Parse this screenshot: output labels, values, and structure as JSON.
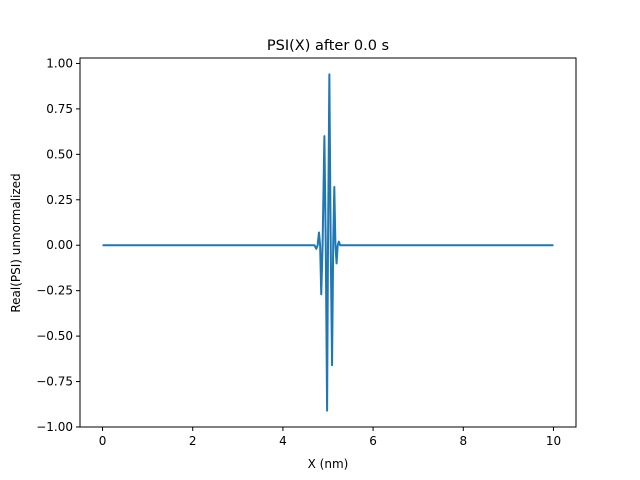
{
  "chart_data": {
    "type": "line",
    "title": "PSI(X) after 0.0 s",
    "xlabel": "X (nm)",
    "ylabel": "Real(PSI) unnormalized",
    "xlim": [
      -0.5,
      10.5
    ],
    "ylim": [
      -1.0,
      1.03
    ],
    "xticks": [
      0,
      2,
      4,
      6,
      8,
      10
    ],
    "xtick_labels": [
      "0",
      "2",
      "4",
      "6",
      "8",
      "10"
    ],
    "yticks": [
      -1.0,
      -0.75,
      -0.5,
      -0.25,
      0.0,
      0.25,
      0.5,
      0.75,
      1.0
    ],
    "ytick_labels": [
      "−1.00",
      "−0.75",
      "−0.50",
      "−0.25",
      "0.00",
      "0.25",
      "0.50",
      "0.75",
      "1.00"
    ],
    "grid": false,
    "legend": "none",
    "series": [
      {
        "color": "#1f77b4",
        "points": [
          [
            0,
            0
          ],
          [
            4.5,
            0
          ],
          [
            4.7,
            0.0
          ],
          [
            4.74,
            -0.02
          ],
          [
            4.77,
            0.0
          ],
          [
            4.8,
            0.07
          ],
          [
            4.825,
            0.0
          ],
          [
            4.85,
            -0.27
          ],
          [
            4.88,
            0.0
          ],
          [
            4.92,
            0.6
          ],
          [
            4.95,
            0.0
          ],
          [
            4.98,
            -0.91
          ],
          [
            5.0,
            0.0
          ],
          [
            5.03,
            0.94
          ],
          [
            5.06,
            0.0
          ],
          [
            5.09,
            -0.66
          ],
          [
            5.115,
            0.0
          ],
          [
            5.14,
            0.32
          ],
          [
            5.165,
            0.0
          ],
          [
            5.19,
            -0.1
          ],
          [
            5.215,
            0.0
          ],
          [
            5.24,
            0.02
          ],
          [
            5.27,
            0.0
          ],
          [
            5.35,
            0
          ],
          [
            10,
            0
          ]
        ]
      }
    ]
  }
}
